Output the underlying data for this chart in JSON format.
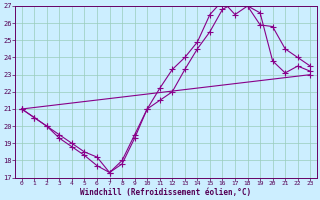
{
  "xlabel": "Windchill (Refroidissement éolien,°C)",
  "bg_color": "#cceeff",
  "grid_color": "#99ccbb",
  "line_color": "#880088",
  "xlim": [
    -0.5,
    23.5
  ],
  "ylim": [
    17,
    27
  ],
  "xticks": [
    0,
    1,
    2,
    3,
    4,
    5,
    6,
    7,
    8,
    9,
    10,
    11,
    12,
    13,
    14,
    15,
    16,
    17,
    18,
    19,
    20,
    21,
    22,
    23
  ],
  "yticks": [
    17,
    18,
    19,
    20,
    21,
    22,
    23,
    24,
    25,
    26,
    27
  ],
  "line1_x": [
    0,
    1,
    2,
    3,
    4,
    5,
    6,
    7,
    8,
    9,
    10,
    11,
    12,
    13,
    14,
    15,
    16,
    17,
    18,
    19,
    20,
    21,
    22,
    23
  ],
  "line1_y": [
    21.0,
    20.5,
    20.0,
    19.3,
    18.8,
    18.3,
    17.7,
    17.3,
    17.8,
    19.3,
    21.0,
    21.5,
    22.0,
    23.3,
    24.5,
    25.5,
    26.8,
    27.2,
    27.0,
    25.9,
    25.8,
    24.5,
    24.0,
    23.5
  ],
  "line2_x": [
    0,
    1,
    2,
    3,
    4,
    5,
    6,
    7,
    8,
    9,
    10,
    11,
    12,
    13,
    14,
    15,
    16,
    17,
    18,
    19,
    20,
    21,
    22,
    23
  ],
  "line2_y": [
    21.0,
    20.5,
    20.0,
    19.5,
    19.0,
    18.5,
    18.2,
    17.3,
    18.0,
    19.5,
    21.0,
    22.2,
    23.3,
    24.0,
    24.9,
    26.5,
    27.3,
    26.5,
    27.0,
    26.6,
    23.8,
    23.1,
    23.5,
    23.2
  ],
  "line3_x": [
    0,
    23
  ],
  "line3_y": [
    21.0,
    23.0
  ]
}
